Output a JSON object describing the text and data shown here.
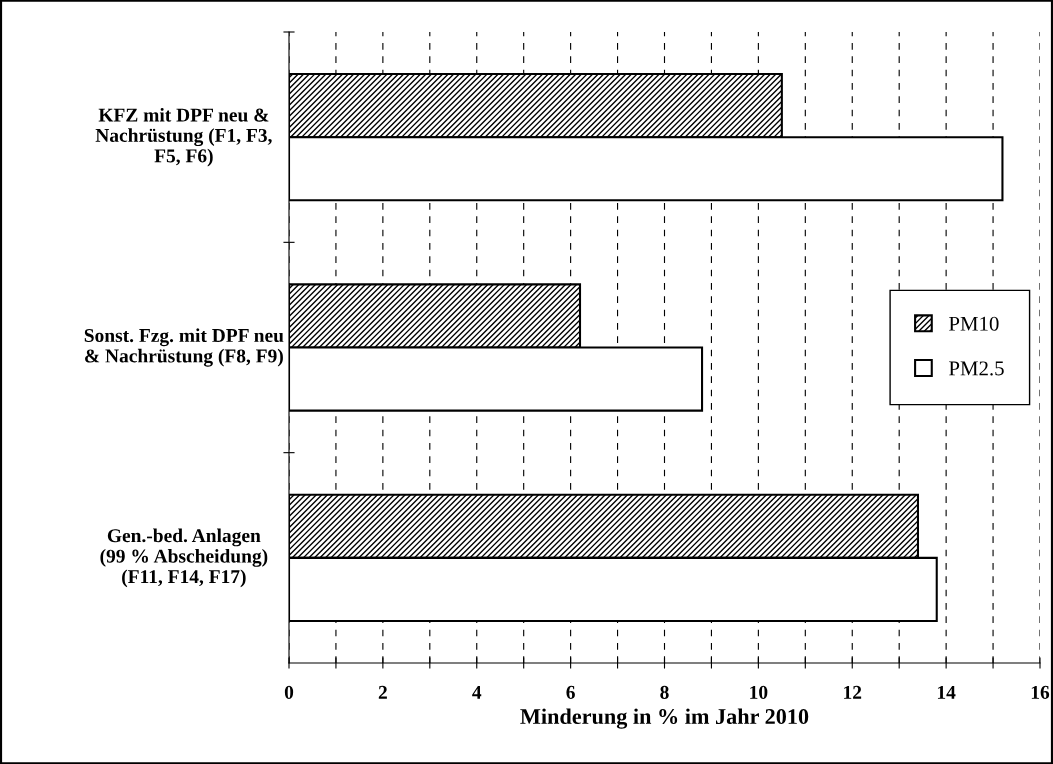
{
  "chart_data": {
    "type": "bar",
    "orientation": "horizontal",
    "xlabel": "Minderung in % im Jahr 2010",
    "categories": [
      "KFZ mit DPF neu &\nNachrüstung (F1, F3,\nF5, F6)",
      "Sonst. Fzg. mit DPF neu\n& Nachrüstung (F8, F9)",
      "Gen.-bed. Anlagen\n(99 % Abscheidung)\n(F11, F14, F17)"
    ],
    "series": [
      {
        "name": "PM10",
        "color": "#000000",
        "values": [
          10.5,
          6.2,
          13.4
        ]
      },
      {
        "name": "PM2.5",
        "color": "#ffffff",
        "values": [
          15.2,
          8.8,
          13.8
        ]
      }
    ],
    "xlim": [
      0,
      16
    ],
    "xticks": [
      0,
      {
        "value": 1,
        "label": null
      },
      2,
      {
        "value": 3,
        "label": null
      },
      4,
      {
        "value": 5,
        "label": null
      },
      6,
      {
        "value": 7,
        "label": null
      },
      8,
      {
        "value": 9,
        "label": null
      },
      10,
      {
        "value": 11,
        "label": null
      },
      12,
      {
        "value": 13,
        "label": null
      },
      14,
      {
        "value": 15,
        "label": null
      },
      16
    ],
    "grid": "x",
    "legend": "right"
  }
}
